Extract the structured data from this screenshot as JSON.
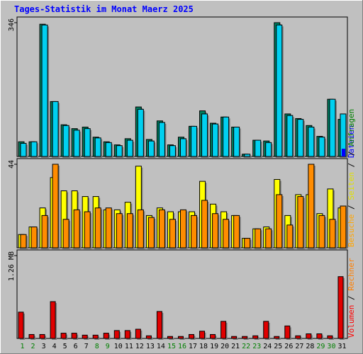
{
  "colors": {
    "background": "#c0c0c0",
    "title": "#0000ff",
    "weekday": "#000000",
    "weekend": "#007f00",
    "anfragen": "#007f5f",
    "dateien": "#00d0f0",
    "seiten": "#ffff00",
    "besuche": "#ff8c00",
    "volumen": "#e00000",
    "rechner_text": "#ff7f00",
    "volumen_text": "#ff0000",
    "besuche_text": "#ffa500",
    "seiten_text": "#e0e000",
    "dateien_text": "#0000ff",
    "anfragen_text": "#007f00"
  },
  "chart_data": {
    "type": "bar",
    "title": "Tages-Statistik im Monat Maerz 2025",
    "categories": [
      "1",
      "2",
      "3",
      "4",
      "5",
      "6",
      "7",
      "8",
      "9",
      "10",
      "11",
      "12",
      "13",
      "14",
      "15",
      "16",
      "17",
      "18",
      "19",
      "20",
      "21",
      "22",
      "23",
      "24",
      "25",
      "26",
      "27",
      "28",
      "29",
      "30",
      "31"
    ],
    "weekend_days": [
      "1",
      "2",
      "8",
      "9",
      "15",
      "16",
      "22",
      "23",
      "29",
      "30"
    ],
    "panels": [
      {
        "name": "hits-files",
        "ymax_label": "346",
        "ymax": 346,
        "series": [
          {
            "name": "Anfragen",
            "values": [
              38,
              38,
              342,
              142,
              82,
              72,
              76,
              50,
              38,
              30,
              46,
              128,
              44,
              92,
              30,
              50,
              78,
              118,
              86,
              102,
              76,
              6,
              42,
              40,
              346,
              110,
              98,
              80,
              52,
              148,
              96
            ]
          },
          {
            "name": "Dateien",
            "values": [
              34,
              38,
              340,
              142,
              80,
              68,
              72,
              48,
              36,
              28,
              42,
              122,
              40,
              88,
              28,
              46,
              78,
              110,
              84,
              102,
              76,
              6,
              42,
              36,
              340,
              106,
              96,
              76,
              50,
              148,
              110
            ]
          },
          {
            "name": "Anfragen-Marker",
            "values": [
              0,
              0,
              0,
              0,
              0,
              0,
              0,
              0,
              0,
              0,
              0,
              0,
              0,
              0,
              0,
              0,
              0,
              0,
              0,
              0,
              0,
              0,
              0,
              0,
              0,
              0,
              0,
              0,
              0,
              0,
              20
            ]
          }
        ]
      },
      {
        "name": "pages-visits",
        "ymax_label": "44",
        "ymax": 44,
        "series": [
          {
            "name": "Seiten",
            "values": [
              7,
              11,
              21,
              37,
              30,
              30,
              27,
              27,
              20,
              20,
              24,
              43,
              17,
              21,
              19,
              19,
              19,
              35,
              23,
              19,
              17,
              5,
              10,
              11,
              36,
              17,
              28,
              28,
              18,
              31,
              21
            ]
          },
          {
            "name": "Besuche",
            "values": [
              7,
              11,
              17,
              44,
              15,
              20,
              19,
              21,
              21,
              18,
              18,
              20,
              16,
              20,
              15,
              20,
              17,
              25,
              18,
              15,
              17,
              5,
              10,
              10,
              28,
              12,
              27,
              44,
              17,
              15,
              22
            ]
          }
        ]
      },
      {
        "name": "volume",
        "ymax_label": "1.26 MB",
        "ymax": 1.26,
        "series": [
          {
            "name": "Volumen",
            "values": [
              0.4,
              0.06,
              0.06,
              0.56,
              0.08,
              0.08,
              0.05,
              0.05,
              0.08,
              0.12,
              0.12,
              0.14,
              0.04,
              0.41,
              0.03,
              0.03,
              0.06,
              0.11,
              0.06,
              0.26,
              0.03,
              0.03,
              0.04,
              0.26,
              0.03,
              0.19,
              0.04,
              0.07,
              0.07,
              0.04,
              0.94
            ]
          }
        ]
      }
    ],
    "side_labels": {
      "bottom": [
        {
          "text": "Volumen",
          "key": "volumen_text"
        },
        {
          "text": " / ",
          "key": "weekday"
        },
        {
          "text": "Rechner",
          "key": "rechner_text"
        }
      ],
      "middle": [
        {
          "text": "Besuche",
          "key": "besuche_text"
        },
        {
          "text": " / ",
          "key": "weekday"
        },
        {
          "text": "Seiten",
          "key": "seiten_text"
        },
        {
          "text": " / ",
          "key": "weekday"
        },
        {
          "text": "Dateien",
          "key": "dateien_text"
        }
      ],
      "top": [
        {
          "text": "/ ",
          "key": "weekday"
        },
        {
          "text": "Anfragen",
          "key": "anfragen_text"
        }
      ]
    }
  }
}
